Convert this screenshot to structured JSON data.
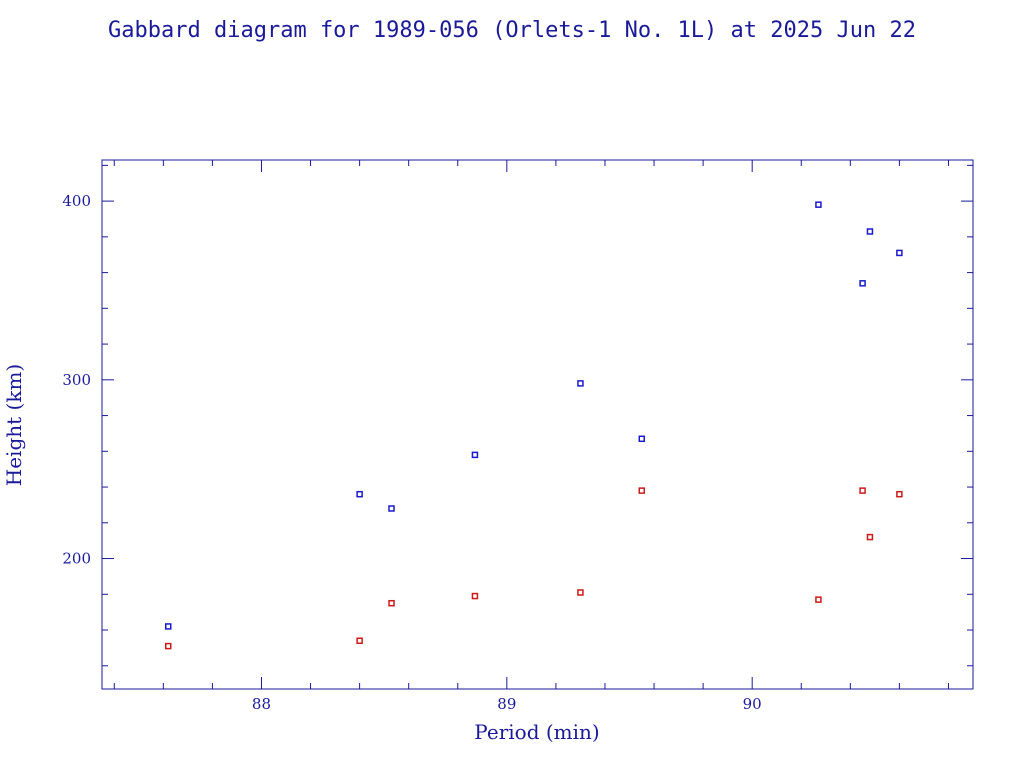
{
  "chart_data": {
    "type": "scatter",
    "title": "Gabbard diagram for 1989-056 (Orlets-1 No. 1L) at 2025 Jun 22",
    "xlabel": "Period (min)",
    "ylabel": "Height (km)",
    "xlim": [
      87.35,
      90.9
    ],
    "ylim": [
      127,
      423
    ],
    "x_ticks_major": [
      88,
      89,
      90
    ],
    "x_ticks_minor_step": 0.2,
    "y_ticks_major": [
      200,
      300,
      400
    ],
    "y_ticks_minor_step": 20,
    "grid": false,
    "series": [
      {
        "color": "#1a1acc",
        "points": [
          {
            "x": 87.62,
            "y": 162
          },
          {
            "x": 88.4,
            "y": 236
          },
          {
            "x": 88.53,
            "y": 228
          },
          {
            "x": 88.87,
            "y": 258
          },
          {
            "x": 89.3,
            "y": 298
          },
          {
            "x": 89.55,
            "y": 267
          },
          {
            "x": 90.27,
            "y": 398
          },
          {
            "x": 90.45,
            "y": 354
          },
          {
            "x": 90.48,
            "y": 383
          },
          {
            "x": 90.6,
            "y": 371
          }
        ]
      },
      {
        "color": "#cc1a1a",
        "points": [
          {
            "x": 87.62,
            "y": 151
          },
          {
            "x": 88.4,
            "y": 154
          },
          {
            "x": 88.53,
            "y": 175
          },
          {
            "x": 88.87,
            "y": 179
          },
          {
            "x": 89.3,
            "y": 181
          },
          {
            "x": 89.55,
            "y": 238
          },
          {
            "x": 90.27,
            "y": 177
          },
          {
            "x": 90.45,
            "y": 238
          },
          {
            "x": 90.48,
            "y": 212
          },
          {
            "x": 90.6,
            "y": 236
          }
        ]
      }
    ]
  }
}
